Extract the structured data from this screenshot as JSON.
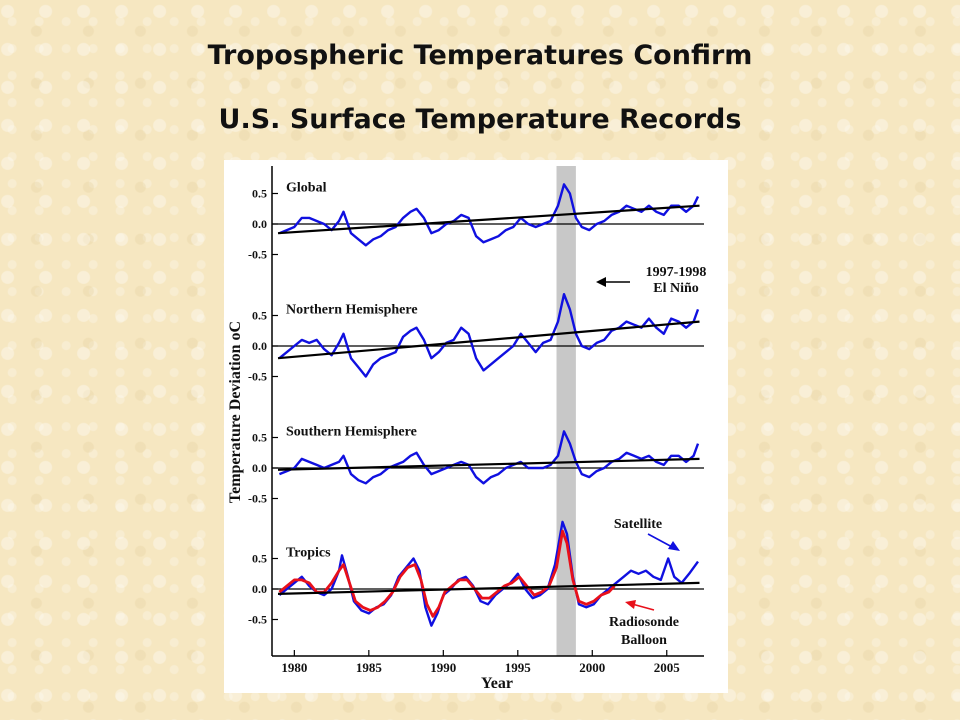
{
  "title_line1": "Tropospheric Temperatures Confirm",
  "title_line2": "U.S. Surface Temperature Records",
  "chart_data": {
    "type": "line",
    "xlabel": "Year",
    "ylabel": "Temperature Deviation oC",
    "xlim": [
      1978.5,
      2007.5
    ],
    "x_ticks": [
      1980,
      1985,
      1990,
      1995,
      2000,
      2005
    ],
    "y_ticks": [
      0.5,
      0.0,
      -0.5
    ],
    "y_tick_labels": [
      "0.5",
      "0.0",
      "-0.5"
    ],
    "shaded_region": {
      "x0": 1997.6,
      "x1": 1998.9
    },
    "annotations": {
      "elnino_line1": "1997-1998",
      "elnino_line2": "El Niño",
      "satellite": "Satellite",
      "radiosonde_line1": "Radiosonde",
      "radiosonde_line2": "Balloon"
    },
    "series_colors": {
      "satellite": "#1010e0",
      "radiosonde": "#e8101a",
      "trend": "#000000"
    },
    "panels": [
      {
        "name": "Global",
        "ylim": [
          -0.65,
          0.65
        ],
        "trend": [
          [
            1978.9,
            -0.15
          ],
          [
            2007.2,
            0.3
          ]
        ],
        "satellite": [
          [
            1979,
            -0.15
          ],
          [
            1979.5,
            -0.1
          ],
          [
            1980,
            -0.05
          ],
          [
            1980.5,
            0.1
          ],
          [
            1981,
            0.1
          ],
          [
            1981.5,
            0.05
          ],
          [
            1982,
            0.0
          ],
          [
            1982.5,
            -0.1
          ],
          [
            1983,
            0.05
          ],
          [
            1983.3,
            0.2
          ],
          [
            1983.8,
            -0.15
          ],
          [
            1984.3,
            -0.25
          ],
          [
            1984.8,
            -0.35
          ],
          [
            1985.3,
            -0.25
          ],
          [
            1985.8,
            -0.2
          ],
          [
            1986.3,
            -0.1
          ],
          [
            1986.8,
            -0.05
          ],
          [
            1987.3,
            0.1
          ],
          [
            1987.8,
            0.2
          ],
          [
            1988.2,
            0.25
          ],
          [
            1988.7,
            0.1
          ],
          [
            1989.2,
            -0.15
          ],
          [
            1989.7,
            -0.1
          ],
          [
            1990.2,
            0.0
          ],
          [
            1990.7,
            0.05
          ],
          [
            1991.2,
            0.15
          ],
          [
            1991.7,
            0.1
          ],
          [
            1992.2,
            -0.2
          ],
          [
            1992.7,
            -0.3
          ],
          [
            1993.2,
            -0.25
          ],
          [
            1993.7,
            -0.2
          ],
          [
            1994.2,
            -0.1
          ],
          [
            1994.7,
            -0.05
          ],
          [
            1995.2,
            0.1
          ],
          [
            1995.7,
            0.0
          ],
          [
            1996.2,
            -0.05
          ],
          [
            1996.7,
            0.0
          ],
          [
            1997.2,
            0.05
          ],
          [
            1997.7,
            0.3
          ],
          [
            1998.1,
            0.65
          ],
          [
            1998.5,
            0.5
          ],
          [
            1998.9,
            0.1
          ],
          [
            1999.3,
            -0.05
          ],
          [
            1999.8,
            -0.1
          ],
          [
            2000.3,
            0.0
          ],
          [
            2000.8,
            0.05
          ],
          [
            2001.3,
            0.15
          ],
          [
            2001.8,
            0.2
          ],
          [
            2002.3,
            0.3
          ],
          [
            2002.8,
            0.25
          ],
          [
            2003.3,
            0.2
          ],
          [
            2003.8,
            0.3
          ],
          [
            2004.3,
            0.2
          ],
          [
            2004.8,
            0.15
          ],
          [
            2005.3,
            0.3
          ],
          [
            2005.8,
            0.3
          ],
          [
            2006.3,
            0.2
          ],
          [
            2006.8,
            0.3
          ],
          [
            2007.1,
            0.45
          ]
        ]
      },
      {
        "name": "Northern Hemisphere",
        "ylim": [
          -0.65,
          0.65
        ],
        "trend": [
          [
            1978.9,
            -0.2
          ],
          [
            2007.2,
            0.4
          ]
        ],
        "satellite": [
          [
            1979,
            -0.2
          ],
          [
            1979.5,
            -0.1
          ],
          [
            1980,
            0.0
          ],
          [
            1980.5,
            0.1
          ],
          [
            1981,
            0.05
          ],
          [
            1981.5,
            0.1
          ],
          [
            1982,
            -0.05
          ],
          [
            1982.5,
            -0.15
          ],
          [
            1983,
            0.05
          ],
          [
            1983.3,
            0.2
          ],
          [
            1983.8,
            -0.2
          ],
          [
            1984.3,
            -0.35
          ],
          [
            1984.8,
            -0.5
          ],
          [
            1985.3,
            -0.3
          ],
          [
            1985.8,
            -0.2
          ],
          [
            1986.3,
            -0.15
          ],
          [
            1986.8,
            -0.1
          ],
          [
            1987.3,
            0.15
          ],
          [
            1987.8,
            0.25
          ],
          [
            1988.2,
            0.3
          ],
          [
            1988.7,
            0.1
          ],
          [
            1989.2,
            -0.2
          ],
          [
            1989.7,
            -0.1
          ],
          [
            1990.2,
            0.05
          ],
          [
            1990.7,
            0.1
          ],
          [
            1991.2,
            0.3
          ],
          [
            1991.7,
            0.2
          ],
          [
            1992.2,
            -0.2
          ],
          [
            1992.7,
            -0.4
          ],
          [
            1993.2,
            -0.3
          ],
          [
            1993.7,
            -0.2
          ],
          [
            1994.2,
            -0.1
          ],
          [
            1994.7,
            0.0
          ],
          [
            1995.2,
            0.2
          ],
          [
            1995.7,
            0.05
          ],
          [
            1996.2,
            -0.1
          ],
          [
            1996.7,
            0.05
          ],
          [
            1997.2,
            0.1
          ],
          [
            1997.7,
            0.4
          ],
          [
            1998.1,
            0.85
          ],
          [
            1998.5,
            0.6
          ],
          [
            1998.9,
            0.2
          ],
          [
            1999.3,
            0.0
          ],
          [
            1999.8,
            -0.05
          ],
          [
            2000.3,
            0.05
          ],
          [
            2000.8,
            0.1
          ],
          [
            2001.3,
            0.25
          ],
          [
            2001.8,
            0.3
          ],
          [
            2002.3,
            0.4
          ],
          [
            2002.8,
            0.35
          ],
          [
            2003.3,
            0.3
          ],
          [
            2003.8,
            0.45
          ],
          [
            2004.3,
            0.3
          ],
          [
            2004.8,
            0.2
          ],
          [
            2005.3,
            0.45
          ],
          [
            2005.8,
            0.4
          ],
          [
            2006.3,
            0.3
          ],
          [
            2006.8,
            0.4
          ],
          [
            2007.1,
            0.6
          ]
        ]
      },
      {
        "name": "Southern Hemisphere",
        "ylim": [
          -0.65,
          0.65
        ],
        "trend": [
          [
            1978.9,
            -0.03
          ],
          [
            2007.2,
            0.15
          ]
        ],
        "satellite": [
          [
            1979,
            -0.1
          ],
          [
            1979.5,
            -0.05
          ],
          [
            1980,
            0.0
          ],
          [
            1980.5,
            0.15
          ],
          [
            1981,
            0.1
          ],
          [
            1981.5,
            0.05
          ],
          [
            1982,
            0.0
          ],
          [
            1982.5,
            0.05
          ],
          [
            1983,
            0.1
          ],
          [
            1983.3,
            0.2
          ],
          [
            1983.8,
            -0.1
          ],
          [
            1984.3,
            -0.2
          ],
          [
            1984.8,
            -0.25
          ],
          [
            1985.3,
            -0.15
          ],
          [
            1985.8,
            -0.1
          ],
          [
            1986.3,
            0.0
          ],
          [
            1986.8,
            0.05
          ],
          [
            1987.3,
            0.1
          ],
          [
            1987.8,
            0.2
          ],
          [
            1988.2,
            0.25
          ],
          [
            1988.7,
            0.05
          ],
          [
            1989.2,
            -0.1
          ],
          [
            1989.7,
            -0.05
          ],
          [
            1990.2,
            0.0
          ],
          [
            1990.7,
            0.05
          ],
          [
            1991.2,
            0.1
          ],
          [
            1991.7,
            0.05
          ],
          [
            1992.2,
            -0.15
          ],
          [
            1992.7,
            -0.25
          ],
          [
            1993.2,
            -0.15
          ],
          [
            1993.7,
            -0.1
          ],
          [
            1994.2,
            0.0
          ],
          [
            1994.7,
            0.05
          ],
          [
            1995.2,
            0.1
          ],
          [
            1995.7,
            0.0
          ],
          [
            1996.2,
            0.0
          ],
          [
            1996.7,
            0.0
          ],
          [
            1997.2,
            0.05
          ],
          [
            1997.7,
            0.2
          ],
          [
            1998.1,
            0.6
          ],
          [
            1998.5,
            0.4
          ],
          [
            1998.9,
            0.1
          ],
          [
            1999.3,
            -0.1
          ],
          [
            1999.8,
            -0.15
          ],
          [
            2000.3,
            -0.05
          ],
          [
            2000.8,
            0.0
          ],
          [
            2001.3,
            0.1
          ],
          [
            2001.8,
            0.15
          ],
          [
            2002.3,
            0.25
          ],
          [
            2002.8,
            0.2
          ],
          [
            2003.3,
            0.15
          ],
          [
            2003.8,
            0.2
          ],
          [
            2004.3,
            0.1
          ],
          [
            2004.8,
            0.05
          ],
          [
            2005.3,
            0.2
          ],
          [
            2005.8,
            0.2
          ],
          [
            2006.3,
            0.1
          ],
          [
            2006.8,
            0.2
          ],
          [
            2007.1,
            0.4
          ]
        ]
      },
      {
        "name": "Tropics",
        "ylim": [
          -0.65,
          0.65
        ],
        "trend": [
          [
            1978.9,
            -0.08
          ],
          [
            2007.2,
            0.1
          ]
        ],
        "satellite": [
          [
            1979,
            -0.1
          ],
          [
            1979.5,
            0.0
          ],
          [
            1980,
            0.1
          ],
          [
            1980.5,
            0.2
          ],
          [
            1981,
            0.05
          ],
          [
            1981.5,
            -0.05
          ],
          [
            1982,
            -0.1
          ],
          [
            1982.5,
            0.0
          ],
          [
            1983,
            0.3
          ],
          [
            1983.2,
            0.55
          ],
          [
            1983.6,
            0.2
          ],
          [
            1984.0,
            -0.2
          ],
          [
            1984.5,
            -0.35
          ],
          [
            1985.0,
            -0.4
          ],
          [
            1985.5,
            -0.3
          ],
          [
            1986.0,
            -0.25
          ],
          [
            1986.5,
            -0.1
          ],
          [
            1987.0,
            0.2
          ],
          [
            1987.5,
            0.35
          ],
          [
            1988.0,
            0.5
          ],
          [
            1988.4,
            0.3
          ],
          [
            1988.8,
            -0.3
          ],
          [
            1989.2,
            -0.6
          ],
          [
            1989.6,
            -0.4
          ],
          [
            1990.0,
            -0.1
          ],
          [
            1990.5,
            0.0
          ],
          [
            1991.0,
            0.15
          ],
          [
            1991.5,
            0.2
          ],
          [
            1992.0,
            0.05
          ],
          [
            1992.5,
            -0.2
          ],
          [
            1993.0,
            -0.25
          ],
          [
            1993.5,
            -0.1
          ],
          [
            1994.0,
            0.0
          ],
          [
            1994.5,
            0.1
          ],
          [
            1995.0,
            0.25
          ],
          [
            1995.5,
            0.0
          ],
          [
            1996.0,
            -0.15
          ],
          [
            1996.5,
            -0.1
          ],
          [
            1997.0,
            0.0
          ],
          [
            1997.5,
            0.4
          ],
          [
            1998.0,
            1.1
          ],
          [
            1998.3,
            0.9
          ],
          [
            1998.7,
            0.2
          ],
          [
            1999.1,
            -0.25
          ],
          [
            1999.6,
            -0.3
          ],
          [
            2000.1,
            -0.25
          ],
          [
            2000.6,
            -0.1
          ],
          [
            2001.1,
            0.0
          ],
          [
            2001.6,
            0.1
          ],
          [
            2002.1,
            0.2
          ],
          [
            2002.6,
            0.3
          ],
          [
            2003.1,
            0.25
          ],
          [
            2003.6,
            0.3
          ],
          [
            2004.1,
            0.2
          ],
          [
            2004.6,
            0.15
          ],
          [
            2005.1,
            0.5
          ],
          [
            2005.5,
            0.2
          ],
          [
            2006.0,
            0.1
          ],
          [
            2006.5,
            0.25
          ],
          [
            2007.1,
            0.45
          ]
        ],
        "radiosonde": [
          [
            1979,
            -0.05
          ],
          [
            1979.5,
            0.05
          ],
          [
            1980,
            0.15
          ],
          [
            1980.5,
            0.15
          ],
          [
            1981,
            0.1
          ],
          [
            1981.5,
            -0.05
          ],
          [
            1982,
            -0.05
          ],
          [
            1982.5,
            0.1
          ],
          [
            1983,
            0.3
          ],
          [
            1983.3,
            0.4
          ],
          [
            1983.7,
            0.1
          ],
          [
            1984.1,
            -0.2
          ],
          [
            1984.6,
            -0.3
          ],
          [
            1985.1,
            -0.35
          ],
          [
            1985.6,
            -0.3
          ],
          [
            1986.1,
            -0.2
          ],
          [
            1986.6,
            -0.05
          ],
          [
            1987.1,
            0.2
          ],
          [
            1987.6,
            0.35
          ],
          [
            1988.1,
            0.4
          ],
          [
            1988.5,
            0.15
          ],
          [
            1988.9,
            -0.25
          ],
          [
            1989.3,
            -0.45
          ],
          [
            1989.7,
            -0.3
          ],
          [
            1990.1,
            -0.05
          ],
          [
            1990.6,
            0.05
          ],
          [
            1991.1,
            0.15
          ],
          [
            1991.6,
            0.15
          ],
          [
            1992.1,
            0.0
          ],
          [
            1992.6,
            -0.15
          ],
          [
            1993.1,
            -0.15
          ],
          [
            1993.6,
            -0.05
          ],
          [
            1994.1,
            0.05
          ],
          [
            1994.6,
            0.1
          ],
          [
            1995.1,
            0.2
          ],
          [
            1995.6,
            0.05
          ],
          [
            1996.1,
            -0.1
          ],
          [
            1996.6,
            -0.05
          ],
          [
            1997.1,
            0.05
          ],
          [
            1997.6,
            0.35
          ],
          [
            1998.0,
            0.95
          ],
          [
            1998.3,
            0.75
          ],
          [
            1998.7,
            0.15
          ],
          [
            1999.1,
            -0.2
          ],
          [
            1999.6,
            -0.25
          ],
          [
            2000.1,
            -0.2
          ],
          [
            2000.6,
            -0.1
          ],
          [
            2001.1,
            -0.05
          ],
          [
            2001.5,
            0.05
          ]
        ]
      }
    ]
  }
}
